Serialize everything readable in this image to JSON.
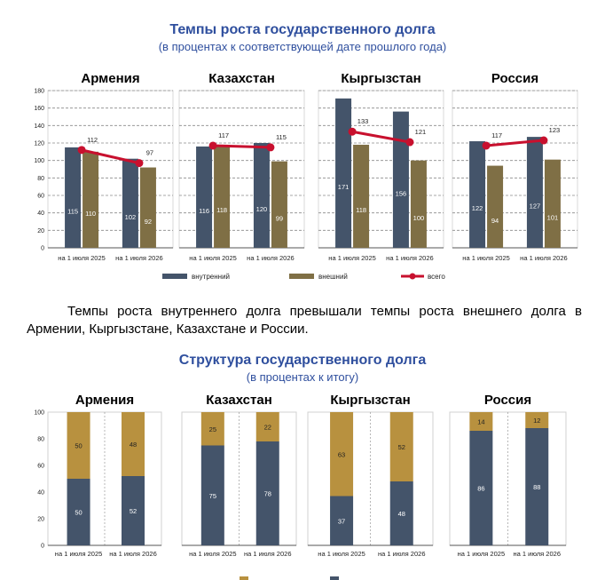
{
  "section1": {
    "title": "Темпы роста государственного долга",
    "subtitle": "(в процентах к соответствующей дате прошлого года)"
  },
  "paragraph": "Темпы роста внутреннего долга превышали темпы роста внешнего долга в Армении, Кыргызстане, Казахстане и России.",
  "section2": {
    "title": "Структура государственного долга",
    "subtitle": "(в процентах к итогу)"
  },
  "colors": {
    "domestic": "#44546a",
    "external_growth": "#7f6f45",
    "external_structure": "#b8913f",
    "total_line": "#c8102e",
    "title_blue": "#2f4f9e"
  },
  "legend": {
    "domestic": "внутренний",
    "external": "внешний",
    "total": "всего"
  },
  "chart_data": [
    {
      "type": "bar",
      "title": "Армения",
      "categories": [
        "на 1 июля 2025",
        "на 1 июля 2026"
      ],
      "ylim": [
        0,
        180
      ],
      "yticks": [
        0,
        20,
        40,
        60,
        80,
        100,
        120,
        140,
        160,
        180
      ],
      "series": [
        {
          "name": "внутренний",
          "values": [
            115,
            102
          ]
        },
        {
          "name": "внешний",
          "values": [
            110,
            92
          ]
        },
        {
          "name": "всего",
          "type": "line",
          "values": [
            112,
            97
          ]
        }
      ]
    },
    {
      "type": "bar",
      "title": "Казахстан",
      "categories": [
        "на 1 июля 2025",
        "на 1 июля 2026"
      ],
      "ylim": [
        0,
        180
      ],
      "series": [
        {
          "name": "внутренний",
          "values": [
            116,
            120
          ]
        },
        {
          "name": "внешний",
          "values": [
            118,
            99
          ]
        },
        {
          "name": "всего",
          "type": "line",
          "values": [
            117,
            115
          ]
        }
      ]
    },
    {
      "type": "bar",
      "title": "Кыргызстан",
      "categories": [
        "на 1 июля 2025",
        "на 1 июля 2026"
      ],
      "ylim": [
        0,
        180
      ],
      "series": [
        {
          "name": "внутренний",
          "values": [
            171,
            156
          ]
        },
        {
          "name": "внешний",
          "values": [
            118,
            100
          ]
        },
        {
          "name": "всего",
          "type": "line",
          "values": [
            133,
            121
          ]
        }
      ]
    },
    {
      "type": "bar",
      "title": "Россия",
      "categories": [
        "на 1 июля 2025",
        "на 1 июля 2026"
      ],
      "ylim": [
        0,
        180
      ],
      "series": [
        {
          "name": "внутренний",
          "values": [
            122,
            127
          ]
        },
        {
          "name": "внешний",
          "values": [
            94,
            101
          ]
        },
        {
          "name": "всего",
          "type": "line",
          "values": [
            117,
            123
          ]
        }
      ]
    },
    {
      "type": "bar",
      "stacked": true,
      "title": "Армения",
      "categories": [
        "на 1 июля 2025",
        "на 1 июля 2026"
      ],
      "ylim": [
        0,
        100
      ],
      "yticks": [
        0,
        20,
        40,
        60,
        80,
        100
      ],
      "series": [
        {
          "name": "внутренний",
          "values": [
            50,
            52
          ]
        },
        {
          "name": "внешний",
          "values": [
            50,
            48
          ]
        }
      ]
    },
    {
      "type": "bar",
      "stacked": true,
      "title": "Казахстан",
      "categories": [
        "на 1 июля 2025",
        "на 1 июля 2026"
      ],
      "ylim": [
        0,
        100
      ],
      "series": [
        {
          "name": "внутренний",
          "values": [
            75,
            78
          ]
        },
        {
          "name": "внешний",
          "values": [
            25,
            22
          ]
        }
      ]
    },
    {
      "type": "bar",
      "stacked": true,
      "title": "Кыргызстан",
      "categories": [
        "на 1 июля 2025",
        "на 1 июля 2026"
      ],
      "ylim": [
        0,
        100
      ],
      "series": [
        {
          "name": "внутренний",
          "values": [
            37,
            48
          ]
        },
        {
          "name": "внешний",
          "values": [
            63,
            52
          ]
        }
      ]
    },
    {
      "type": "bar",
      "stacked": true,
      "title": "Россия",
      "categories": [
        "на 1 июля 2025",
        "на 1 июля 2026"
      ],
      "ylim": [
        0,
        100
      ],
      "series": [
        {
          "name": "внутренний",
          "values": [
            86,
            88
          ]
        },
        {
          "name": "внешний",
          "values": [
            14,
            12
          ]
        }
      ]
    }
  ]
}
